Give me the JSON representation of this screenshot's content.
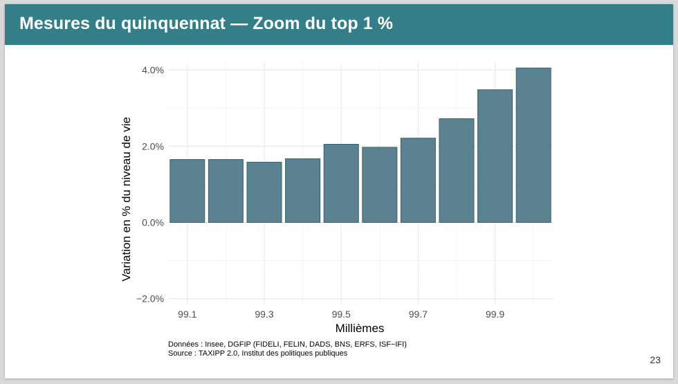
{
  "slide": {
    "title": "Mesures du quinquennat — Zoom du top 1 %",
    "page_number": "23",
    "footer": {
      "data_line": "Données : Insee, DGFIP (FIDELI, FELIN, DADS, BNS, ERFS, ISF−IFI)",
      "source_line": "Source : TAXIPP 2.0, Institut des politiques publiques"
    }
  },
  "colors": {
    "header": "#347f87",
    "bar_fill": "#5a8290",
    "bar_stroke": "#3a5f6c"
  },
  "chart_data": {
    "type": "bar",
    "xlabel": "Millièmes",
    "ylabel": "Variation en % du niveau de vie",
    "categories": [
      "99.1",
      "99.2",
      "99.3",
      "99.4",
      "99.5",
      "99.6",
      "99.7",
      "99.8",
      "99.9",
      "100"
    ],
    "x_tick_labels": [
      "99.1",
      "99.3",
      "99.5",
      "99.7",
      "99.9"
    ],
    "values": [
      1.65,
      1.65,
      1.58,
      1.67,
      2.05,
      1.97,
      2.21,
      2.72,
      3.48,
      4.05
    ],
    "y_ticks": [
      -2,
      0,
      2,
      4
    ],
    "y_tick_labels": [
      "−2.0%",
      "0.0%",
      "2.0%",
      "4.0%"
    ],
    "ylim": [
      -2.15,
      4.2
    ],
    "grid": true,
    "legend": "none"
  }
}
